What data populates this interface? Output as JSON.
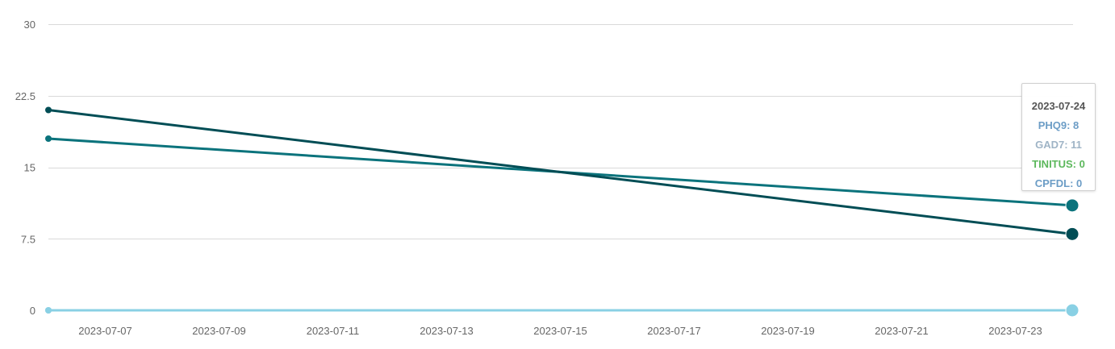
{
  "chart_data": {
    "type": "line",
    "x": [
      "2023-07-06",
      "2023-07-24"
    ],
    "x_ticks": [
      "2023-07-07",
      "2023-07-09",
      "2023-07-11",
      "2023-07-13",
      "2023-07-15",
      "2023-07-17",
      "2023-07-19",
      "2023-07-21",
      "2023-07-23"
    ],
    "y_ticks": [
      "0",
      "7.5",
      "15",
      "22.5",
      "30"
    ],
    "ylim": [
      0,
      30
    ],
    "grid": true,
    "series": [
      {
        "name": "PHQ9",
        "color": "#004d55",
        "values": [
          21,
          8
        ]
      },
      {
        "name": "GAD7",
        "color": "#0b737c",
        "values": [
          18,
          11
        ]
      },
      {
        "name": "TINITUS",
        "color": "#89d0e4",
        "values": [
          0,
          0
        ]
      },
      {
        "name": "CPFDL",
        "color": "#89d0e4",
        "values": [
          0,
          0
        ]
      }
    ]
  },
  "tooltip": {
    "date": "2023-07-24",
    "rows": [
      {
        "text": "PHQ9: 8",
        "color": "#6c9dc6"
      },
      {
        "text": "GAD7: 11",
        "color": "#9fb4c6"
      },
      {
        "text": "TINITUS: 0",
        "color": "#5cb85c"
      },
      {
        "text": "CPFDL: 0",
        "color": "#6c9dc6"
      }
    ]
  }
}
